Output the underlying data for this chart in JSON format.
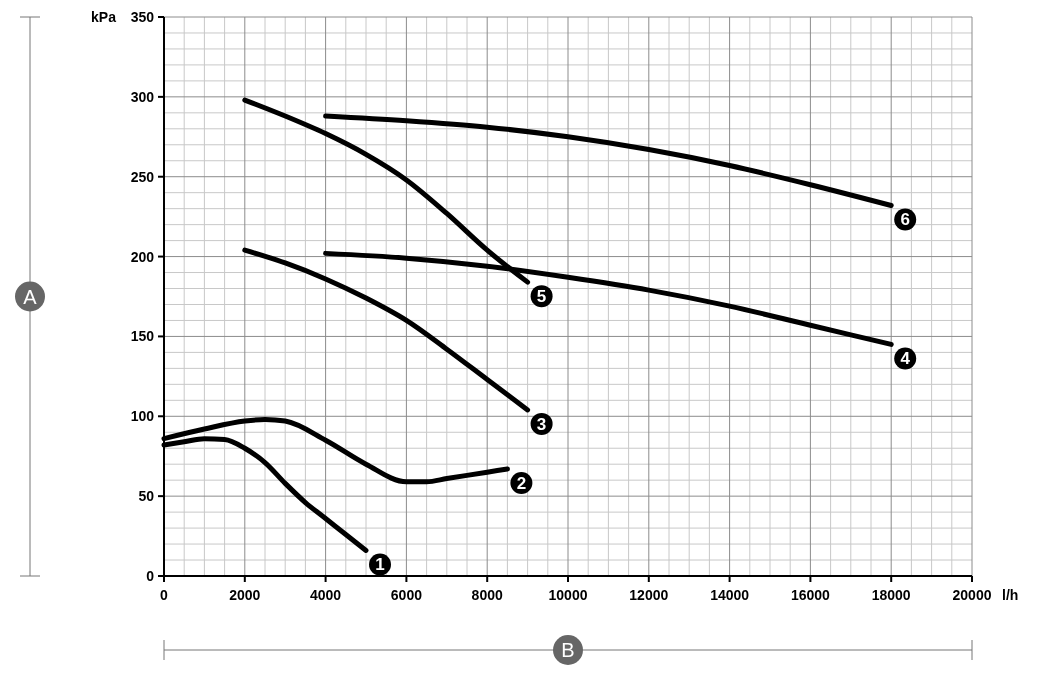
{
  "chart_data": {
    "type": "line",
    "xlabel": "l/h",
    "ylabel": "kPa",
    "xlim": [
      0,
      20000
    ],
    "ylim": [
      0,
      350
    ],
    "xticks": [
      0,
      2000,
      4000,
      6000,
      8000,
      10000,
      12000,
      14000,
      16000,
      18000,
      20000
    ],
    "yticks": [
      0,
      50,
      100,
      150,
      200,
      250,
      300,
      350
    ],
    "grid": true,
    "marker": "none",
    "line_style": "solid",
    "annotations": [
      "A",
      "B"
    ],
    "series": [
      {
        "name": "1",
        "color": "#000000",
        "x": [
          0,
          500,
          1000,
          1500,
          2000,
          2500,
          3000,
          3500,
          4000,
          4500,
          5000
        ],
        "values": [
          82,
          84,
          86,
          85.5,
          80,
          71,
          58,
          46,
          36,
          26,
          16
        ]
      },
      {
        "name": "2",
        "color": "#000000",
        "x": [
          0,
          1000,
          2000,
          2500,
          3000,
          4000,
          5000,
          6000,
          6500,
          7000,
          8000,
          8500
        ],
        "values": [
          86,
          92,
          97,
          98,
          97,
          85,
          70,
          59,
          59,
          61,
          65,
          67
        ]
      },
      {
        "name": "3",
        "color": "#000000",
        "x": [
          2000,
          3000,
          4000,
          5000,
          6000,
          7000,
          8000,
          9000
        ],
        "values": [
          204,
          196,
          186,
          174,
          160,
          142,
          123,
          104
        ]
      },
      {
        "name": "4",
        "color": "#000000",
        "x": [
          4000,
          6000,
          8000,
          10000,
          12000,
          14000,
          16000,
          18000
        ],
        "values": [
          202,
          199,
          194,
          187,
          179,
          169,
          157,
          145
        ]
      },
      {
        "name": "5",
        "color": "#000000",
        "x": [
          2000,
          3000,
          4000,
          5000,
          6000,
          7000,
          8000,
          9000
        ],
        "values": [
          298,
          288,
          277,
          264,
          248,
          227,
          204,
          184
        ]
      },
      {
        "name": "6",
        "color": "#000000",
        "x": [
          4000,
          6000,
          8000,
          10000,
          12000,
          14000,
          16000,
          18000
        ],
        "values": [
          288,
          285,
          281,
          275,
          267,
          257,
          245,
          232
        ]
      }
    ]
  }
}
